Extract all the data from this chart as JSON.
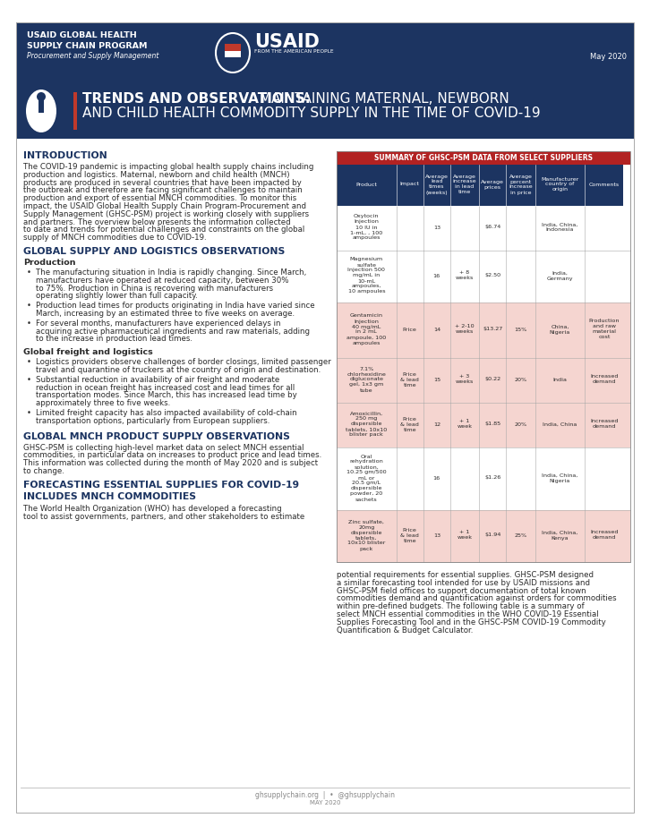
{
  "page_bg": "#ffffff",
  "outer_border_color": "#bbbbbb",
  "header_bg": "#1c3461",
  "header_text_color": "#ffffff",
  "header_org_line1": "USAID GLOBAL HEALTH",
  "header_org_line2": "SUPPLY CHAIN PROGRAM",
  "header_org_line3": "Procurement and Supply Management",
  "header_date": "May 2020",
  "title_bar_bg": "#1c3461",
  "red_bar_color": "#c0392b",
  "section1_heading": "INTRODUCTION",
  "section1_body_lines": [
    "The COVID-19 pandemic is impacting global health supply chains including",
    "production and logistics. Maternal, newborn and child health (MNCH)",
    "products are produced in several countries that have been impacted by",
    "the outbreak and therefore are facing significant challenges to maintain",
    "production and export of essential MNCH commodities. To monitor this",
    "impact, the USAID Global Health Supply Chain Program-Procurement and",
    "Supply Management (GHSC-PSM) project is working closely with suppliers",
    "and partners. The overview below presents the information collected",
    "to date and trends for potential challenges and constraints on the global",
    "supply of MNCH commodities due to COVID-19."
  ],
  "section2_heading": "GLOBAL SUPPLY AND LOGISTICS OBSERVATIONS",
  "section2_sub1": "Production",
  "section2_bullets1": [
    [
      "The manufacturing situation in India is rapidly changing. Since March,",
      "manufacturers have operated at reduced capacity, between 30%",
      "to 75%. Production in China is recovering with manufacturers",
      "operating slightly lower than full capacity."
    ],
    [
      "Production lead times for products originating in India have varied since",
      "March, increasing by an estimated three to five weeks on average."
    ],
    [
      "For several months, manufacturers have experienced delays in",
      "acquiring active pharmaceutical ingredients and raw materials, adding",
      "to the increase in production lead times."
    ]
  ],
  "section2_sub2": "Global freight and logistics",
  "section2_bullets2": [
    [
      "Logistics providers observe challenges of border closings, limited passenger",
      "travel and quarantine of truckers at the country of origin and destination."
    ],
    [
      "Substantial reduction in availability of air freight and moderate",
      "reduction in ocean freight has increased cost and lead times for all",
      "transportation modes. Since March, this has increased lead time by",
      "approximately three to five weeks."
    ],
    [
      "Limited freight capacity has also impacted availability of cold-chain",
      "transportation options, particularly from European suppliers."
    ]
  ],
  "section3_heading": "GLOBAL MNCH PRODUCT SUPPLY OBSERVATIONS",
  "section3_body_lines": [
    "GHSC-PSM is collecting high-level market data on select MNCH essential",
    "commodities, in particular data on increases to product price and lead times.",
    "This information was collected during the month of May 2020 and is subject",
    "to change."
  ],
  "section4_heading1": "FORECASTING ESSENTIAL SUPPLIES FOR COVID-19",
  "section4_heading2": "INCLUDES MNCH COMMODITIES",
  "section4_body_lines": [
    "The World Health Organization (WHO) has developed a forecasting",
    "tool to assist governments, partners, and other stakeholders to estimate"
  ],
  "table_header_bg": "#b22222",
  "table_header_text": "SUMMARY OF GHSC-PSM DATA FROM SELECT SUPPLIERS",
  "table_col_header_bg": "#1c3461",
  "table_col_headers": [
    "Product",
    "Impact",
    "Average\nlead\ntimes\n(weeks)",
    "Average\nincrease\nin lead\ntime",
    "Average\nprices",
    "Average\npercent\nincrease\nin price",
    "Manufacturer\ncountry of\norigin",
    "Comments"
  ],
  "table_row_bg_pink": "#f5d5d0",
  "table_row_bg_white": "#ffffff",
  "table_data": [
    [
      "Oxytocin\nInjection\n10 IU in\n1-mL, , 100\nampoules",
      "",
      "13",
      "",
      "$6.74",
      "",
      "India, China,\nIndonesia",
      ""
    ],
    [
      "Magnesium\nsulfate\nInjection 500\nmg/mL in\n10-mL\nampoules,\n10 ampoules",
      "",
      "16",
      "+ 8\nweeks",
      "$2.50",
      "",
      "India,\nGermany",
      ""
    ],
    [
      "Gentamicin\nInjection\n40 mg/mL\nin 2 mL\nampoule, 100\nampoules",
      "Price",
      "14",
      "+ 2-10\nweeks",
      "$13.27",
      "15%",
      "China,\nNigeria",
      "Production\nand raw\nmaterial\ncost"
    ],
    [
      "7.1%\nchlorhexidine\ndigluconate\ngel, 1x3 gm\ntube",
      "Price\n& lead\ntime",
      "15",
      "+ 3\nweeks",
      "$0.22",
      "20%",
      "India",
      "Increased\ndemand"
    ],
    [
      "Amoxicillin,\n250 mg\ndispersible\ntablets, 10x10\nblister pack",
      "Price\n& lead\ntime",
      "12",
      "+ 1\nweek",
      "$1.85",
      "20%",
      "India, China",
      "Increased\ndemand"
    ],
    [
      "Oral\nrehydration\nsolution,\n10.25 gm/500\nmL or\n20.5 gm/L\ndispersible\npowder, 20\nsachets",
      "",
      "16",
      "",
      "$1.26",
      "",
      "India, China,\nNigeria",
      ""
    ],
    [
      "Zinc sulfate,\n20mg\ndispersible\ntablets,\n10x10 blister\npack",
      "Price\n& lead\ntime",
      "13",
      "+ 1\nweek",
      "$1.94",
      "25%",
      "India, China,\nKenya",
      "Increased\ndemand"
    ]
  ],
  "right_bottom_lines": [
    "potential requirements for essential supplies. GHSC-PSM designed",
    "a similar forecasting tool intended for use by USAID missions and",
    "GHSC-PSM field offices to support documentation of total known",
    "commodities demand and quantification against orders for commodities",
    "within pre-defined budgets. The following table is a summary of",
    "select MNCH essential commodities in the WHO COVID-19 Essential",
    "Supplies Forecasting Tool and in the GHSC-PSM COVID-19 Commodity",
    "Quantification & Budget Calculator."
  ],
  "footer_text": "ghsupplychain.org  |  •  @ghsupplychain",
  "footer_date": "MAY 2020",
  "heading_color": "#1c3461",
  "body_text_color": "#2a2a2a"
}
